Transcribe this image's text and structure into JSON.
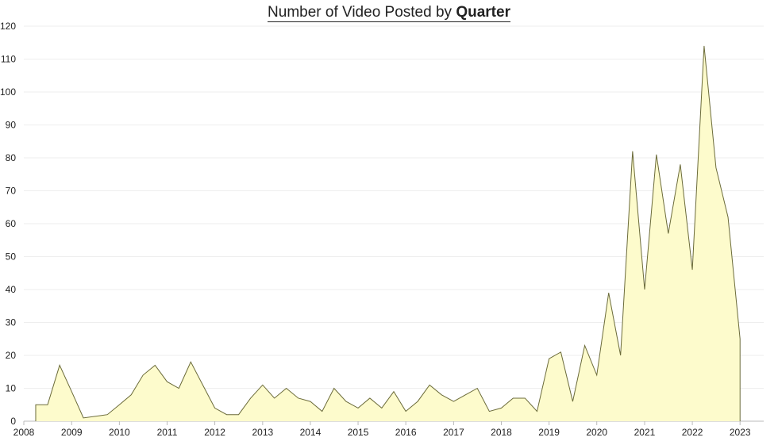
{
  "title": {
    "regular": "Number of Video Posted by",
    "bold": "Quarter"
  },
  "colors": {
    "area_fill": "#fdfbcc",
    "area_stroke": "#6b6b3a",
    "grid": "#eeeeee",
    "axis": "#bbbbbb",
    "text": "#222222"
  },
  "chart_data": {
    "type": "area",
    "title": "Number of Video Posted by Quarter",
    "xlabel": "",
    "ylabel": "",
    "x_ticks": [
      "2008",
      "2009",
      "2010",
      "2011",
      "2012",
      "2013",
      "2014",
      "2015",
      "2016",
      "2017",
      "2018",
      "2019",
      "2020",
      "2021",
      "2022",
      "2023"
    ],
    "y_ticks": [
      "0",
      "10",
      "20",
      "30",
      "40",
      "50",
      "60",
      "70",
      "80",
      "90",
      "100",
      "110",
      "120"
    ],
    "xlim": [
      "2008-01-01",
      "2023-07-01"
    ],
    "ylim": [
      0,
      120
    ],
    "grid": "horizontal",
    "series": [
      {
        "x": [
          "2008-04-01",
          "2008-07-01",
          "2008-10-01",
          "2009-01-01",
          "2009-04-01",
          "2009-07-01",
          "2009-10-01",
          "2010-01-01",
          "2010-04-01",
          "2010-07-01",
          "2010-10-01",
          "2011-01-01",
          "2011-04-01",
          "2011-07-01",
          "2011-10-01",
          "2012-01-01",
          "2012-04-01",
          "2012-07-01",
          "2012-10-01",
          "2013-01-01",
          "2013-04-01",
          "2013-07-01",
          "2013-10-01",
          "2014-01-01",
          "2014-04-01",
          "2014-07-01",
          "2014-10-01",
          "2015-01-01",
          "2015-04-01",
          "2015-07-01",
          "2015-10-01",
          "2016-01-01",
          "2016-04-01",
          "2016-07-01",
          "2016-10-01",
          "2017-01-01",
          "2017-04-01",
          "2017-07-01",
          "2017-10-01",
          "2018-01-01",
          "2018-04-01",
          "2018-07-01",
          "2018-10-01",
          "2019-01-01",
          "2019-04-01",
          "2019-07-01",
          "2019-10-01",
          "2020-01-01",
          "2020-04-01",
          "2020-07-01",
          "2020-10-01",
          "2021-01-01",
          "2021-04-01",
          "2021-07-01",
          "2021-10-01",
          "2022-01-01",
          "2022-04-01",
          "2022-07-01",
          "2022-10-01",
          "2023-01-01"
        ],
        "values": [
          5,
          5,
          17,
          9,
          1,
          null,
          2,
          5,
          8,
          14,
          17,
          12,
          10,
          18,
          11,
          4,
          2,
          2,
          7,
          11,
          7,
          10,
          7,
          6,
          3,
          10,
          6,
          4,
          7,
          4,
          9,
          3,
          6,
          11,
          8,
          6,
          8,
          10,
          3,
          4,
          7,
          7,
          3,
          19,
          21,
          6,
          23,
          14,
          39,
          20,
          82,
          40,
          81,
          57,
          78,
          46,
          114,
          77,
          62,
          25
        ]
      }
    ]
  }
}
